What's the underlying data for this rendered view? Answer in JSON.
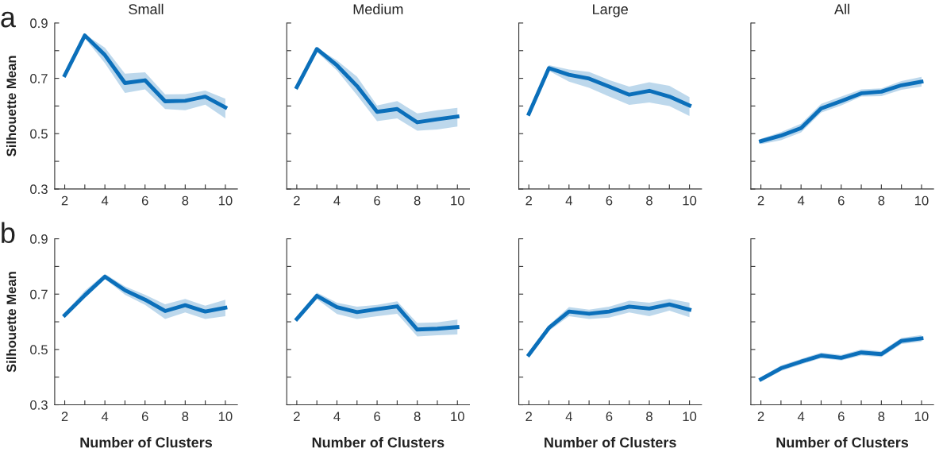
{
  "chart_data": [
    {
      "type": "line",
      "title": "Small",
      "ylabel": "Silhouette Mean",
      "annotations": [
        "a"
      ],
      "x": [
        2,
        3,
        4,
        5,
        6,
        7,
        8,
        9,
        10
      ],
      "tick_labels": true,
      "series": [
        {
          "color": "#0b6fba",
          "values": [
            0.711,
            0.855,
            0.784,
            0.683,
            0.693,
            0.617,
            0.619,
            0.634,
            0.595
          ],
          "lower": [
            0.7,
            0.845,
            0.755,
            0.647,
            0.66,
            0.589,
            0.585,
            0.605,
            0.555
          ],
          "upper": [
            0.72,
            0.86,
            0.811,
            0.717,
            0.722,
            0.642,
            0.643,
            0.656,
            0.626
          ]
        }
      ],
      "xlim": [
        1.5,
        10.6
      ],
      "xticks": [
        2,
        {
          "value": 3,
          "label": null
        },
        4,
        {
          "value": 5,
          "label": null
        },
        6,
        {
          "value": 7,
          "label": null
        },
        8,
        {
          "value": 9,
          "label": null
        },
        10
      ],
      "ylim": [
        0.3,
        0.9
      ],
      "yticks": [
        0.3,
        {
          "value": 0.4,
          "label": null
        },
        0.5,
        {
          "value": 0.6,
          "label": null
        },
        0.7,
        {
          "value": 0.8,
          "label": null
        },
        0.9
      ],
      "grid": false,
      "legend": false,
      "line_style": "solid",
      "marker": "none"
    },
    {
      "type": "line",
      "title": "Medium",
      "x": [
        2,
        3,
        4,
        5,
        6,
        7,
        8,
        9,
        10
      ],
      "tick_labels": "x",
      "series": [
        {
          "color": "#0b6fba",
          "values": [
            0.668,
            0.806,
            0.747,
            0.672,
            0.579,
            0.589,
            0.541,
            0.552,
            0.562
          ],
          "lower": [
            0.655,
            0.795,
            0.728,
            0.639,
            0.545,
            0.555,
            0.511,
            0.515,
            0.526
          ],
          "upper": [
            0.68,
            0.81,
            0.765,
            0.706,
            0.602,
            0.618,
            0.573,
            0.585,
            0.593
          ]
        }
      ],
      "xlim": [
        1.5,
        10.6
      ],
      "xticks": [
        2,
        {
          "value": 3,
          "label": null
        },
        4,
        {
          "value": 5,
          "label": null
        },
        6,
        {
          "value": 7,
          "label": null
        },
        8,
        {
          "value": 9,
          "label": null
        },
        10
      ],
      "ylim": [
        0.3,
        0.9
      ],
      "yticks": [
        0.3,
        {
          "value": 0.4,
          "label": null
        },
        0.5,
        {
          "value": 0.6,
          "label": null
        },
        0.7,
        {
          "value": 0.8,
          "label": null
        },
        0.9
      ],
      "grid": false,
      "legend": false,
      "line_style": "solid",
      "marker": "none"
    },
    {
      "type": "line",
      "title": "Large",
      "x": [
        2,
        3,
        4,
        5,
        6,
        7,
        8,
        9,
        10
      ],
      "tick_labels": "x",
      "series": [
        {
          "color": "#0b6fba",
          "values": [
            0.572,
            0.737,
            0.713,
            0.699,
            0.67,
            0.641,
            0.655,
            0.634,
            0.602
          ],
          "lower": [
            0.56,
            0.727,
            0.688,
            0.666,
            0.634,
            0.604,
            0.613,
            0.6,
            0.564
          ],
          "upper": [
            0.585,
            0.748,
            0.732,
            0.723,
            0.694,
            0.67,
            0.686,
            0.673,
            0.632
          ]
        }
      ],
      "xlim": [
        1.5,
        10.6
      ],
      "xticks": [
        2,
        {
          "value": 3,
          "label": null
        },
        4,
        {
          "value": 5,
          "label": null
        },
        6,
        {
          "value": 7,
          "label": null
        },
        8,
        {
          "value": 9,
          "label": null
        },
        10
      ],
      "ylim": [
        0.3,
        0.9
      ],
      "yticks": [
        0.3,
        {
          "value": 0.4,
          "label": null
        },
        0.5,
        {
          "value": 0.6,
          "label": null
        },
        0.7,
        {
          "value": 0.8,
          "label": null
        },
        0.9
      ],
      "grid": false,
      "legend": false,
      "line_style": "solid",
      "marker": "none"
    },
    {
      "type": "line",
      "title": "All",
      "x": [
        2,
        3,
        4,
        5,
        6,
        7,
        8,
        9,
        10
      ],
      "tick_labels": "x",
      "series": [
        {
          "color": "#0b6fba",
          "values": [
            0.473,
            0.493,
            0.52,
            0.591,
            0.618,
            0.646,
            0.652,
            0.675,
            0.688
          ],
          "lower": [
            0.462,
            0.476,
            0.504,
            0.576,
            0.602,
            0.634,
            0.636,
            0.659,
            0.67
          ],
          "upper": [
            0.481,
            0.506,
            0.536,
            0.608,
            0.634,
            0.66,
            0.664,
            0.69,
            0.705
          ]
        }
      ],
      "xlim": [
        1.5,
        10.6
      ],
      "xticks": [
        2,
        {
          "value": 3,
          "label": null
        },
        4,
        {
          "value": 5,
          "label": null
        },
        6,
        {
          "value": 7,
          "label": null
        },
        8,
        {
          "value": 9,
          "label": null
        },
        10
      ],
      "ylim": [
        0.3,
        0.9
      ],
      "yticks": [
        0.3,
        {
          "value": 0.4,
          "label": null
        },
        0.5,
        {
          "value": 0.6,
          "label": null
        },
        0.7,
        {
          "value": 0.8,
          "label": null
        },
        0.9
      ],
      "grid": false,
      "legend": false,
      "line_style": "solid",
      "marker": "none"
    },
    {
      "type": "line",
      "xlabel": "Number of Clusters",
      "ylabel": "Silhouette Mean",
      "annotations": [
        "b"
      ],
      "x": [
        2,
        3,
        4,
        5,
        6,
        7,
        8,
        9,
        10
      ],
      "tick_labels": true,
      "series": [
        {
          "color": "#0b6fba",
          "values": [
            0.624,
            0.696,
            0.763,
            0.714,
            0.68,
            0.639,
            0.66,
            0.637,
            0.651
          ],
          "lower": [
            0.615,
            0.685,
            0.755,
            0.698,
            0.661,
            0.61,
            0.634,
            0.61,
            0.62
          ],
          "upper": [
            0.632,
            0.712,
            0.773,
            0.728,
            0.698,
            0.663,
            0.683,
            0.658,
            0.68
          ]
        }
      ],
      "xlim": [
        1.5,
        10.6
      ],
      "xticks": [
        2,
        {
          "value": 3,
          "label": null
        },
        4,
        {
          "value": 5,
          "label": null
        },
        6,
        {
          "value": 7,
          "label": null
        },
        8,
        {
          "value": 9,
          "label": null
        },
        10
      ],
      "ylim": [
        0.3,
        0.9
      ],
      "yticks": [
        0.3,
        {
          "value": 0.4,
          "label": null
        },
        0.5,
        {
          "value": 0.6,
          "label": null
        },
        0.7,
        {
          "value": 0.8,
          "label": null
        },
        0.9
      ],
      "grid": false,
      "legend": false,
      "line_style": "solid",
      "marker": "none"
    },
    {
      "type": "line",
      "xlabel": "Number of Clusters",
      "x": [
        2,
        3,
        4,
        5,
        6,
        7,
        8,
        9,
        10
      ],
      "tick_labels": "x",
      "series": [
        {
          "color": "#0b6fba",
          "values": [
            0.61,
            0.694,
            0.653,
            0.635,
            0.646,
            0.656,
            0.572,
            0.575,
            0.581
          ],
          "lower": [
            0.6,
            0.682,
            0.628,
            0.61,
            0.62,
            0.629,
            0.547,
            0.551,
            0.554
          ],
          "upper": [
            0.62,
            0.706,
            0.669,
            0.655,
            0.661,
            0.674,
            0.596,
            0.598,
            0.608
          ]
        }
      ],
      "xlim": [
        1.5,
        10.6
      ],
      "xticks": [
        2,
        {
          "value": 3,
          "label": null
        },
        4,
        {
          "value": 5,
          "label": null
        },
        6,
        {
          "value": 7,
          "label": null
        },
        8,
        {
          "value": 9,
          "label": null
        },
        10
      ],
      "ylim": [
        0.3,
        0.9
      ],
      "yticks": [
        0.3,
        {
          "value": 0.4,
          "label": null
        },
        0.5,
        {
          "value": 0.6,
          "label": null
        },
        0.7,
        {
          "value": 0.8,
          "label": null
        },
        0.9
      ],
      "grid": false,
      "legend": false,
      "line_style": "solid",
      "marker": "none"
    },
    {
      "type": "line",
      "xlabel": "Number of Clusters",
      "x": [
        2,
        3,
        4,
        5,
        6,
        7,
        8,
        9,
        10
      ],
      "tick_labels": "x",
      "series": [
        {
          "color": "#0b6fba",
          "values": [
            0.481,
            0.578,
            0.637,
            0.629,
            0.637,
            0.655,
            0.648,
            0.663,
            0.644
          ],
          "lower": [
            0.47,
            0.567,
            0.62,
            0.61,
            0.615,
            0.634,
            0.62,
            0.64,
            0.617
          ],
          "upper": [
            0.49,
            0.588,
            0.653,
            0.644,
            0.655,
            0.676,
            0.669,
            0.683,
            0.669
          ]
        }
      ],
      "xlim": [
        1.5,
        10.6
      ],
      "xticks": [
        2,
        {
          "value": 3,
          "label": null
        },
        4,
        {
          "value": 5,
          "label": null
        },
        6,
        {
          "value": 7,
          "label": null
        },
        8,
        {
          "value": 9,
          "label": null
        },
        10
      ],
      "ylim": [
        0.3,
        0.9
      ],
      "yticks": [
        0.3,
        {
          "value": 0.4,
          "label": null
        },
        0.5,
        {
          "value": 0.6,
          "label": null
        },
        0.7,
        {
          "value": 0.8,
          "label": null
        },
        0.9
      ],
      "grid": false,
      "legend": false,
      "line_style": "solid",
      "marker": "none"
    },
    {
      "type": "line",
      "xlabel": "Number of Clusters",
      "x": [
        2,
        3,
        4,
        5,
        6,
        7,
        8,
        9,
        10
      ],
      "tick_labels": "x",
      "series": [
        {
          "color": "#0b6fba",
          "values": [
            0.392,
            0.432,
            0.456,
            0.478,
            0.47,
            0.489,
            0.483,
            0.531,
            0.54
          ],
          "lower": [
            0.383,
            0.422,
            0.446,
            0.468,
            0.46,
            0.478,
            0.472,
            0.52,
            0.528
          ],
          "upper": [
            0.4,
            0.442,
            0.466,
            0.489,
            0.48,
            0.5,
            0.494,
            0.542,
            0.552
          ]
        }
      ],
      "xlim": [
        1.5,
        10.6
      ],
      "xticks": [
        2,
        {
          "value": 3,
          "label": null
        },
        4,
        {
          "value": 5,
          "label": null
        },
        6,
        {
          "value": 7,
          "label": null
        },
        8,
        {
          "value": 9,
          "label": null
        },
        10
      ],
      "ylim": [
        0.3,
        0.9
      ],
      "yticks": [
        0.3,
        {
          "value": 0.4,
          "label": null
        },
        0.5,
        {
          "value": 0.6,
          "label": null
        },
        0.7,
        {
          "value": 0.8,
          "label": null
        },
        0.9
      ],
      "grid": false,
      "legend": false,
      "line_style": "solid",
      "marker": "none"
    }
  ]
}
